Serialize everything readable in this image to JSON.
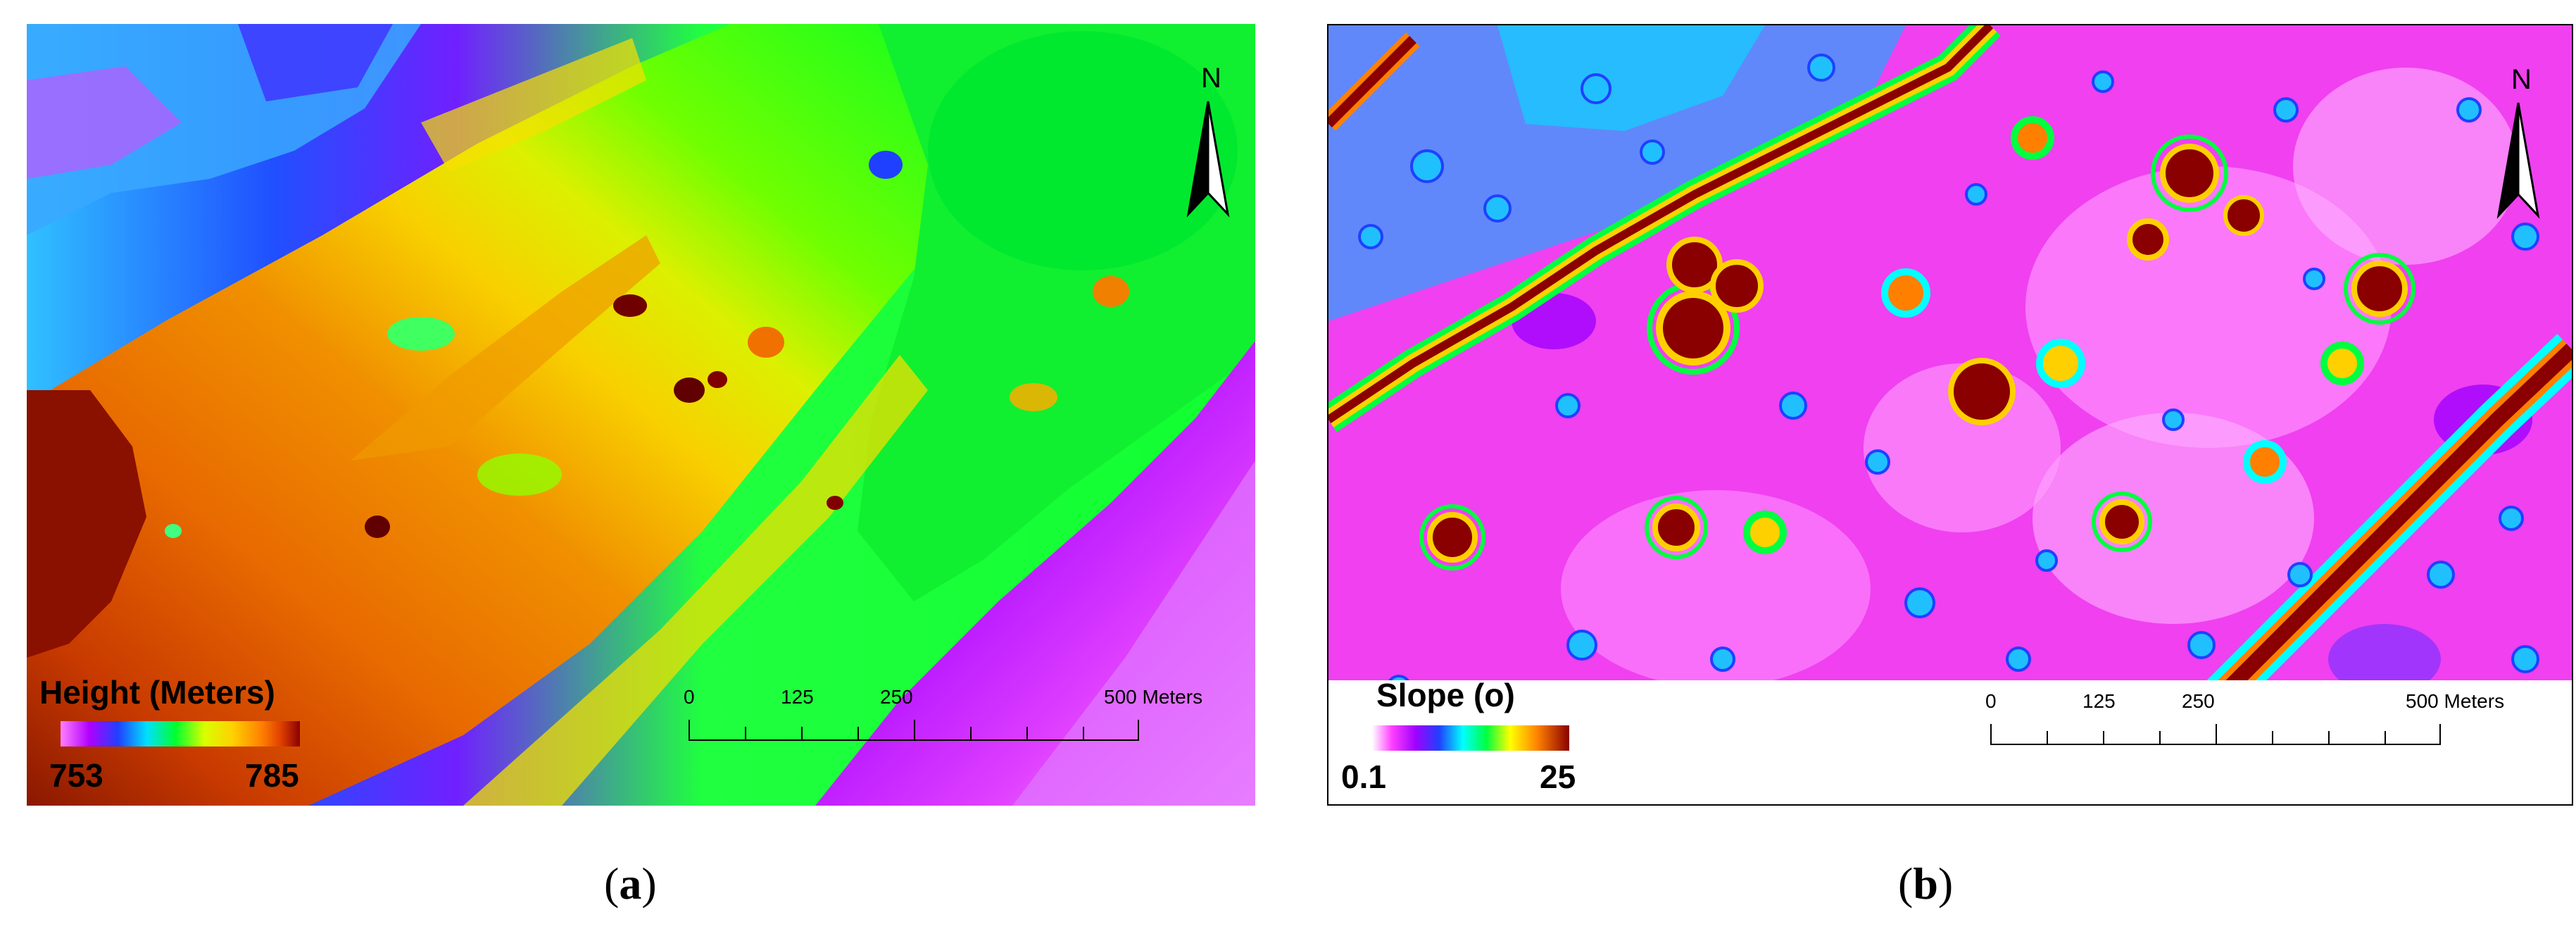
{
  "panels": [
    {
      "id": "a",
      "legend": {
        "title": "Height (Meters)",
        "min": "753",
        "max": "785"
      },
      "scale": {
        "ticks": [
          "0",
          "125",
          "250",
          "500 Meters"
        ]
      },
      "north": "N",
      "caption": {
        "open": "(",
        "letter": "a",
        "close": ")"
      }
    },
    {
      "id": "b",
      "legend": {
        "title": "Slope (o)",
        "min": "0.1",
        "max": "25"
      },
      "scale": {
        "ticks": [
          "0",
          "125",
          "250",
          "500 Meters"
        ]
      },
      "north": "N",
      "caption": {
        "open": "(",
        "letter": "b",
        "close": ")"
      }
    }
  ],
  "colors": {
    "height_ramp": [
      "#ff80ff",
      "#b000ff",
      "#2040ff",
      "#00e0ff",
      "#00ff30",
      "#d8ff00",
      "#ffd000",
      "#ff8000",
      "#e04000",
      "#8a0000"
    ],
    "slope_ramp": [
      "#ffffff",
      "#ff40ff",
      "#a000ff",
      "#2040ff",
      "#00ffff",
      "#00ff40",
      "#ffff00",
      "#ff8000",
      "#8a0000"
    ]
  }
}
